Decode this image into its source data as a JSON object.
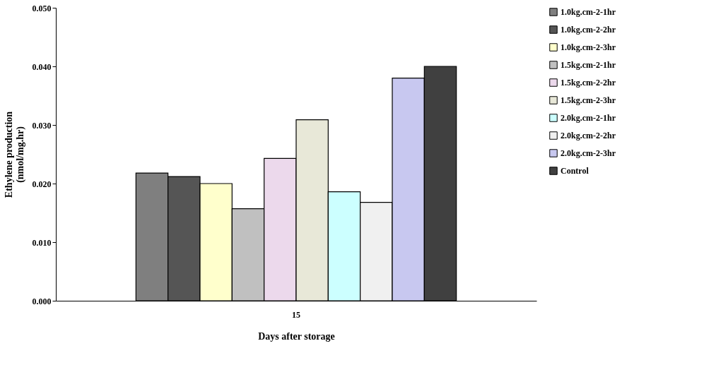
{
  "chart_data": {
    "type": "bar",
    "categories": [
      "15"
    ],
    "xlabel": "Days after storage",
    "ylabel": "Ethylene production\n(nmol/mg.hr)",
    "ylim": [
      0,
      0.05
    ],
    "yticks": [
      {
        "value": 0,
        "label": "0.000"
      },
      {
        "value": 0.01,
        "label": "0.010"
      },
      {
        "value": 0.02,
        "label": "0.020"
      },
      {
        "value": 0.03,
        "label": "0.030"
      },
      {
        "value": 0.04,
        "label": "0.040"
      },
      {
        "value": 0.05,
        "label": "0.050"
      }
    ],
    "grid": false,
    "legend": "right",
    "series": [
      {
        "name": "1.0kg.cm-2-1hr",
        "color": "#7f7f7f",
        "values": [
          0.0218
        ]
      },
      {
        "name": "1.0kg.cm-2-2hr",
        "color": "#555555",
        "values": [
          0.0212
        ]
      },
      {
        "name": "1.0kg.cm-2-3hr",
        "color": "#ffffcc",
        "values": [
          0.02
        ]
      },
      {
        "name": "1.5kg.cm-2-1hr",
        "color": "#c0c0c0",
        "values": [
          0.0157
        ]
      },
      {
        "name": "1.5kg.cm-2-2hr",
        "color": "#ecd9ec",
        "values": [
          0.0243
        ]
      },
      {
        "name": "1.5kg.cm-2-3hr",
        "color": "#e8e8d8",
        "values": [
          0.0309
        ]
      },
      {
        "name": "2.0kg.cm-2-1hr",
        "color": "#ccffff",
        "values": [
          0.0186
        ]
      },
      {
        "name": "2.0kg.cm-2-2hr",
        "color": "#f0f0f0",
        "values": [
          0.0168
        ]
      },
      {
        "name": "2.0kg.cm-2-3hr",
        "color": "#c8c8f0",
        "values": [
          0.038
        ]
      },
      {
        "name": "Control",
        "color": "#404040",
        "values": [
          0.04
        ]
      }
    ]
  }
}
